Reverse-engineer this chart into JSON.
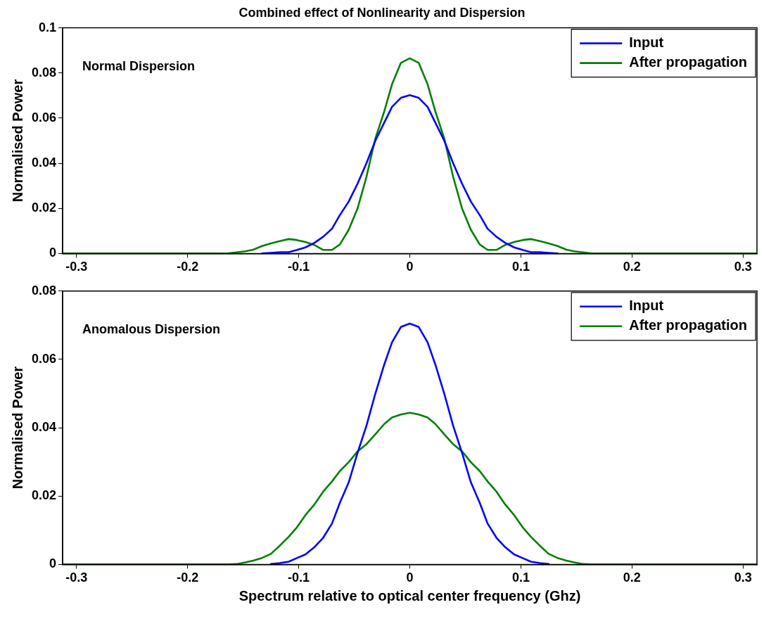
{
  "chart_data": [
    {
      "type": "line",
      "title": "Combined effect of Nonlinearity and Dispersion",
      "ylabel": "Normalised Power",
      "annotations": [
        "Normal Dispersion"
      ],
      "x": [
        -0.3125,
        -0.164,
        -0.156,
        -0.148,
        -0.141,
        -0.133,
        -0.125,
        -0.117,
        -0.109,
        -0.102,
        -0.094,
        -0.086,
        -0.078,
        -0.07,
        -0.063,
        -0.055,
        -0.047,
        -0.039,
        -0.031,
        -0.023,
        -0.016,
        -0.008,
        0,
        0.008,
        0.016,
        0.023,
        0.031,
        0.039,
        0.047,
        0.055,
        0.063,
        0.07,
        0.078,
        0.086,
        0.094,
        0.102,
        0.109,
        0.117,
        0.125,
        0.133,
        0.141,
        0.148,
        0.156,
        0.164,
        0.3125
      ],
      "series": [
        {
          "name": "Input",
          "color": "#0000ff",
          "values": [
            null,
            null,
            null,
            null,
            null,
            0,
            0.0003,
            0.0006,
            0.0006,
            0.0015,
            0.0027,
            0.0047,
            0.0074,
            0.011,
            0.017,
            0.023,
            0.031,
            0.04,
            0.05,
            0.058,
            0.065,
            0.069,
            0.0702,
            0.069,
            0.065,
            0.058,
            0.05,
            0.04,
            0.031,
            0.023,
            0.017,
            0.011,
            0.0074,
            0.0047,
            0.0027,
            0.0015,
            0.0006,
            0.0006,
            0.0003,
            0,
            null,
            null,
            null,
            null,
            null
          ]
        },
        {
          "name": "After propagation",
          "color": "#008000",
          "values": [
            0,
            0,
            0.0005,
            0.001,
            0.0017,
            0.0033,
            0.0045,
            0.0055,
            0.0064,
            0.006,
            0.0051,
            0.0038,
            0.0016,
            0.0016,
            0.004,
            0.0105,
            0.02,
            0.034,
            0.051,
            0.063,
            0.075,
            0.0845,
            0.0865,
            0.0845,
            0.075,
            0.063,
            0.051,
            0.034,
            0.02,
            0.0105,
            0.004,
            0.0016,
            0.0016,
            0.0038,
            0.0051,
            0.006,
            0.0064,
            0.0055,
            0.0045,
            0.0033,
            0.0017,
            0.001,
            0.0005,
            0,
            0
          ]
        }
      ],
      "xlim": [
        -0.3125,
        0.3125
      ],
      "xticks": [
        -0.3,
        -0.2,
        -0.1,
        0,
        0.1,
        0.2,
        0.3
      ],
      "ylim": [
        0,
        0.1
      ],
      "yticks": [
        0,
        0.02,
        0.04,
        0.06,
        0.08,
        0.1
      ],
      "legend": "top right",
      "marker": "none",
      "line_style": "solid"
    },
    {
      "type": "line",
      "xlabel": "Spectrum relative to optical center frequency (Ghz)",
      "ylabel": "Normalised Power",
      "annotations": [
        "Anomalous Dispersion"
      ],
      "x": [
        -0.3125,
        -0.164,
        -0.156,
        -0.148,
        -0.141,
        -0.133,
        -0.125,
        -0.117,
        -0.109,
        -0.102,
        -0.094,
        -0.086,
        -0.078,
        -0.07,
        -0.063,
        -0.055,
        -0.047,
        -0.039,
        -0.031,
        -0.023,
        -0.016,
        -0.008,
        0,
        0.008,
        0.016,
        0.023,
        0.031,
        0.039,
        0.047,
        0.055,
        0.063,
        0.07,
        0.078,
        0.086,
        0.094,
        0.102,
        0.109,
        0.117,
        0.125,
        0.133,
        0.141,
        0.148,
        0.156,
        0.164,
        0.3125
      ],
      "series": [
        {
          "name": "Input",
          "color": "#0000ff",
          "values": [
            null,
            null,
            null,
            null,
            null,
            null,
            0.0001,
            0.0004,
            0.0008,
            0.0018,
            0.0029,
            0.005,
            0.0078,
            0.012,
            0.018,
            0.024,
            0.0327,
            0.0406,
            0.05,
            0.0585,
            0.065,
            0.0695,
            0.0705,
            0.0695,
            0.065,
            0.0585,
            0.05,
            0.0406,
            0.0327,
            0.024,
            0.018,
            0.012,
            0.0078,
            0.005,
            0.0029,
            0.0018,
            0.0008,
            0.0004,
            0.0001,
            null,
            null,
            null,
            null,
            null,
            null
          ]
        },
        {
          "name": "After propagation",
          "color": "#008000",
          "values": [
            0,
            0,
            0.0001,
            0.0006,
            0.0011,
            0.0019,
            0.0031,
            0.0055,
            0.0081,
            0.0107,
            0.0144,
            0.0175,
            0.0213,
            0.0243,
            0.0273,
            0.0299,
            0.0331,
            0.0352,
            0.0381,
            0.0411,
            0.043,
            0.0439,
            0.0444,
            0.0439,
            0.043,
            0.0411,
            0.0381,
            0.0352,
            0.0331,
            0.0299,
            0.0273,
            0.0243,
            0.0213,
            0.0175,
            0.0144,
            0.0107,
            0.0081,
            0.0055,
            0.0031,
            0.0019,
            0.0011,
            0.0006,
            0.0001,
            0,
            0
          ]
        }
      ],
      "xlim": [
        -0.3125,
        0.3125
      ],
      "xticks": [
        -0.3,
        -0.2,
        -0.1,
        0,
        0.1,
        0.2,
        0.3
      ],
      "ylim": [
        0,
        0.08
      ],
      "yticks": [
        0,
        0.02,
        0.04,
        0.06,
        0.08
      ],
      "legend": "top right",
      "marker": "none",
      "line_style": "solid"
    }
  ]
}
